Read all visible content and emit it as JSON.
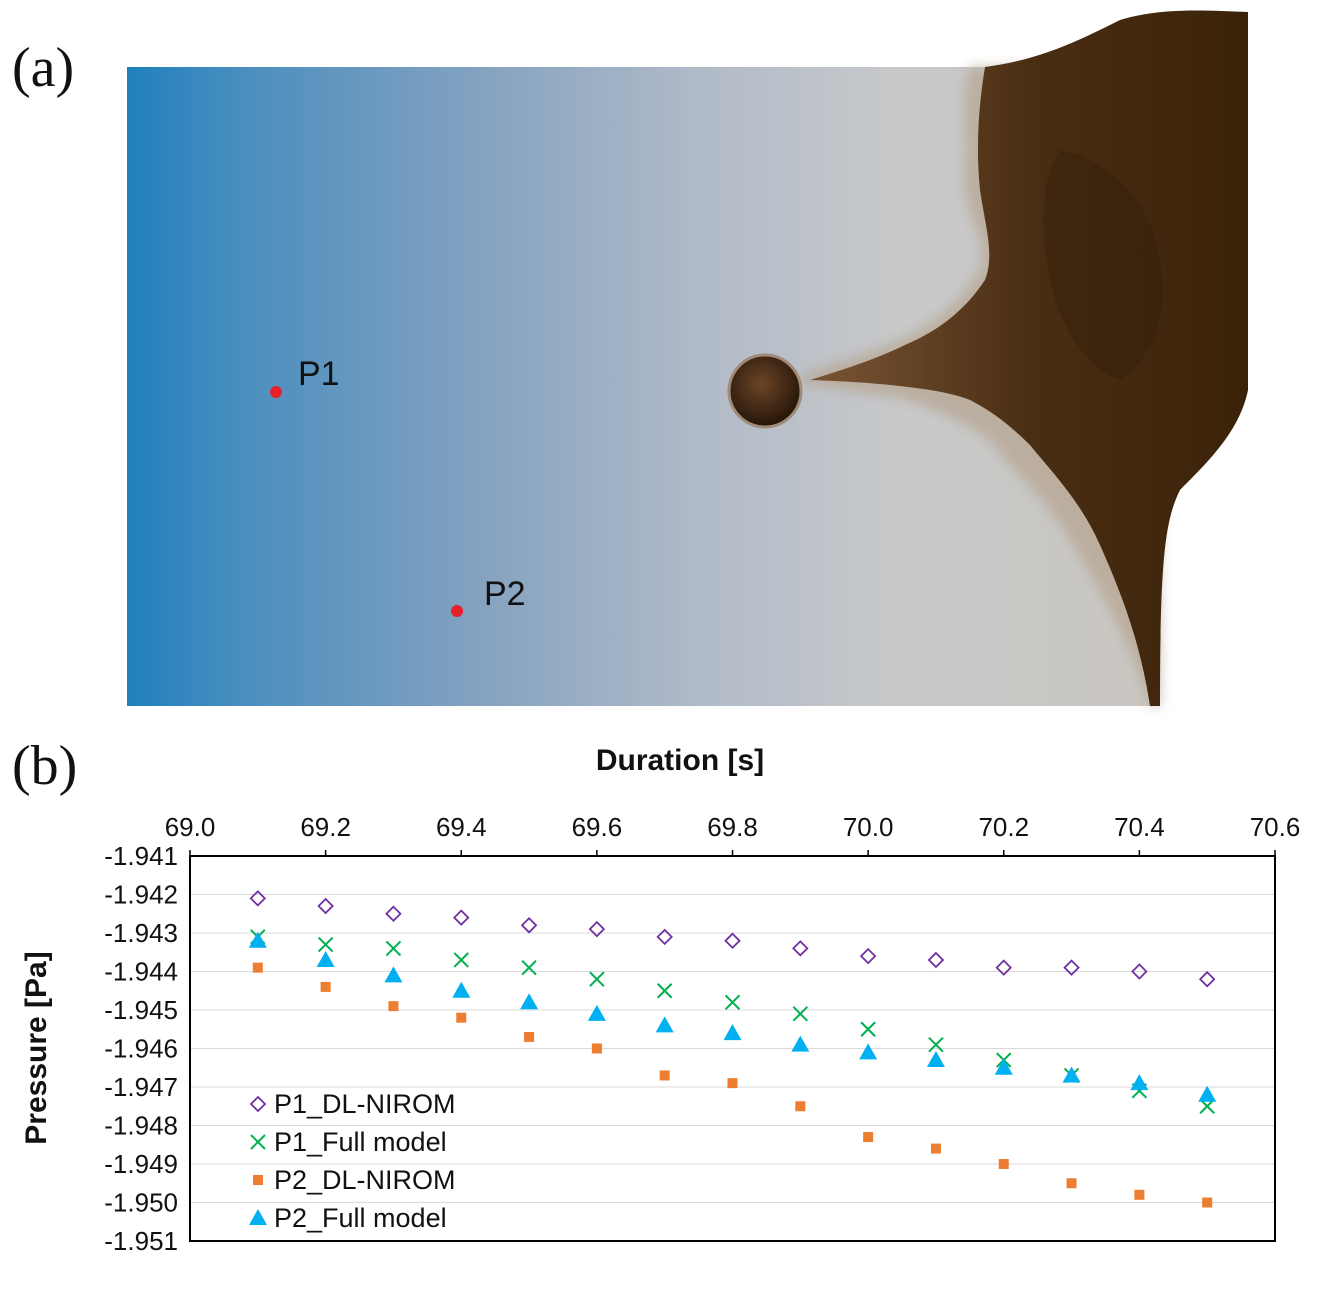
{
  "panels": {
    "a": {
      "label": "(a)",
      "probes": [
        {
          "name": "P1"
        },
        {
          "name": "P2"
        }
      ]
    },
    "b": {
      "label": "(b)"
    }
  },
  "colors": {
    "p1_dl_nirom": "#7030a0",
    "p1_full": "#00b050",
    "p2_dl_nirom": "#ed7d31",
    "p2_full": "#00b0f0",
    "probe_dot": "#e8202a"
  },
  "chart_data": {
    "type": "scatter",
    "xlabel": "Duration [s]",
    "ylabel": "Pressure [Pa]",
    "xlim": [
      69.0,
      70.6
    ],
    "ylim": [
      -1.951,
      -1.941
    ],
    "x_axis_position": "top",
    "y_axis_reversed": true,
    "x_ticks": [
      "69.0",
      "69.2",
      "69.4",
      "69.6",
      "69.8",
      "70.0",
      "70.2",
      "70.4",
      "70.6"
    ],
    "y_ticks": [
      "-1.941",
      "-1.942",
      "-1.943",
      "-1.944",
      "-1.945",
      "-1.946",
      "-1.947",
      "-1.948",
      "-1.949",
      "-1.950",
      "-1.951"
    ],
    "grid": true,
    "legend_position": "bottom-left",
    "x": [
      69.1,
      69.2,
      69.3,
      69.4,
      69.5,
      69.6,
      69.7,
      69.8,
      69.9,
      70.0,
      70.1,
      70.2,
      70.3,
      70.4,
      70.5
    ],
    "series": [
      {
        "name": "P1_DL-NIROM",
        "marker": "diamond-open",
        "color": "#7030a0",
        "values": [
          -1.9421,
          -1.9423,
          -1.9425,
          -1.9426,
          -1.9428,
          -1.9429,
          -1.9431,
          -1.9432,
          -1.9434,
          -1.9436,
          -1.9437,
          -1.9439,
          -1.9439,
          -1.944,
          -1.9442
        ]
      },
      {
        "name": "P1_Full model",
        "marker": "x",
        "color": "#00b050",
        "values": [
          -1.9431,
          -1.9433,
          -1.9434,
          -1.9437,
          -1.9439,
          -1.9442,
          -1.9445,
          -1.9448,
          -1.9451,
          -1.9455,
          -1.9459,
          -1.9463,
          -1.9467,
          -1.9471,
          -1.9475
        ]
      },
      {
        "name": "P2_DL-NIROM",
        "marker": "square",
        "color": "#ed7d31",
        "values": [
          -1.9439,
          -1.9444,
          -1.9449,
          -1.9452,
          -1.9457,
          -1.946,
          -1.9467,
          -1.9469,
          -1.9475,
          -1.9483,
          -1.9486,
          -1.949,
          -1.9495,
          -1.9498,
          -1.95
        ]
      },
      {
        "name": "P2_Full model",
        "marker": "triangle",
        "color": "#00b0f0",
        "values": [
          -1.9432,
          -1.9437,
          -1.9441,
          -1.9445,
          -1.9448,
          -1.9451,
          -1.9454,
          -1.9456,
          -1.9459,
          -1.9461,
          -1.9463,
          -1.9465,
          -1.9467,
          -1.9469,
          -1.9472
        ]
      }
    ]
  }
}
